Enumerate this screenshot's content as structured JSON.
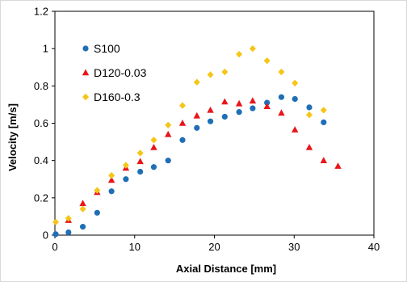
{
  "chart_data": {
    "type": "scatter",
    "xlabel": "Axial Distance [mm]",
    "ylabel": "Velocity [m/s]",
    "xlim": [
      0,
      40
    ],
    "ylim": [
      0,
      1.2
    ],
    "xticks": [
      "0",
      "10",
      "20",
      "30",
      "40"
    ],
    "yticks": [
      "0",
      "0.2",
      "0.4",
      "0.6",
      "0.8",
      "1",
      "1.2"
    ],
    "grid": false,
    "legend_position": "top-left",
    "series": [
      {
        "name": "S100",
        "marker": "circle",
        "color": "#1f6fb5",
        "points": [
          [
            0.1,
            0.005
          ],
          [
            1.7,
            0.015
          ],
          [
            3.5,
            0.045
          ],
          [
            5.3,
            0.12
          ],
          [
            7.1,
            0.235
          ],
          [
            8.9,
            0.3
          ],
          [
            10.7,
            0.34
          ],
          [
            12.4,
            0.365
          ],
          [
            14.2,
            0.4
          ],
          [
            16.0,
            0.51
          ],
          [
            17.8,
            0.575
          ],
          [
            19.5,
            0.61
          ],
          [
            21.3,
            0.635
          ],
          [
            23.1,
            0.66
          ],
          [
            24.8,
            0.68
          ],
          [
            26.6,
            0.71
          ],
          [
            28.4,
            0.74
          ],
          [
            30.1,
            0.73
          ],
          [
            31.9,
            0.685
          ],
          [
            33.7,
            0.605
          ]
        ]
      },
      {
        "name": "D120-0.03",
        "marker": "triangle",
        "color": "#e8151b",
        "points": [
          [
            1.7,
            0.08
          ],
          [
            3.5,
            0.17
          ],
          [
            5.3,
            0.23
          ],
          [
            7.1,
            0.295
          ],
          [
            8.9,
            0.36
          ],
          [
            10.7,
            0.395
          ],
          [
            12.4,
            0.47
          ],
          [
            14.2,
            0.54
          ],
          [
            16.0,
            0.6
          ],
          [
            17.8,
            0.64
          ],
          [
            19.5,
            0.67
          ],
          [
            21.3,
            0.715
          ],
          [
            23.1,
            0.705
          ],
          [
            24.8,
            0.72
          ],
          [
            26.6,
            0.69
          ],
          [
            28.4,
            0.655
          ],
          [
            30.1,
            0.565
          ],
          [
            31.9,
            0.47
          ],
          [
            33.7,
            0.4
          ],
          [
            35.5,
            0.37
          ]
        ]
      },
      {
        "name": "D160-0.3",
        "marker": "diamond",
        "color": "#f5c518",
        "points": [
          [
            0.1,
            0.07
          ],
          [
            1.7,
            0.09
          ],
          [
            3.5,
            0.14
          ],
          [
            5.3,
            0.24
          ],
          [
            7.1,
            0.32
          ],
          [
            8.9,
            0.375
          ],
          [
            10.7,
            0.44
          ],
          [
            12.4,
            0.51
          ],
          [
            14.2,
            0.59
          ],
          [
            16.0,
            0.695
          ],
          [
            17.8,
            0.82
          ],
          [
            19.5,
            0.86
          ],
          [
            21.3,
            0.875
          ],
          [
            23.1,
            0.97
          ],
          [
            24.8,
            1.0
          ],
          [
            26.6,
            0.935
          ],
          [
            28.4,
            0.875
          ],
          [
            30.1,
            0.815
          ],
          [
            31.9,
            0.645
          ],
          [
            33.7,
            0.67
          ]
        ]
      }
    ]
  }
}
